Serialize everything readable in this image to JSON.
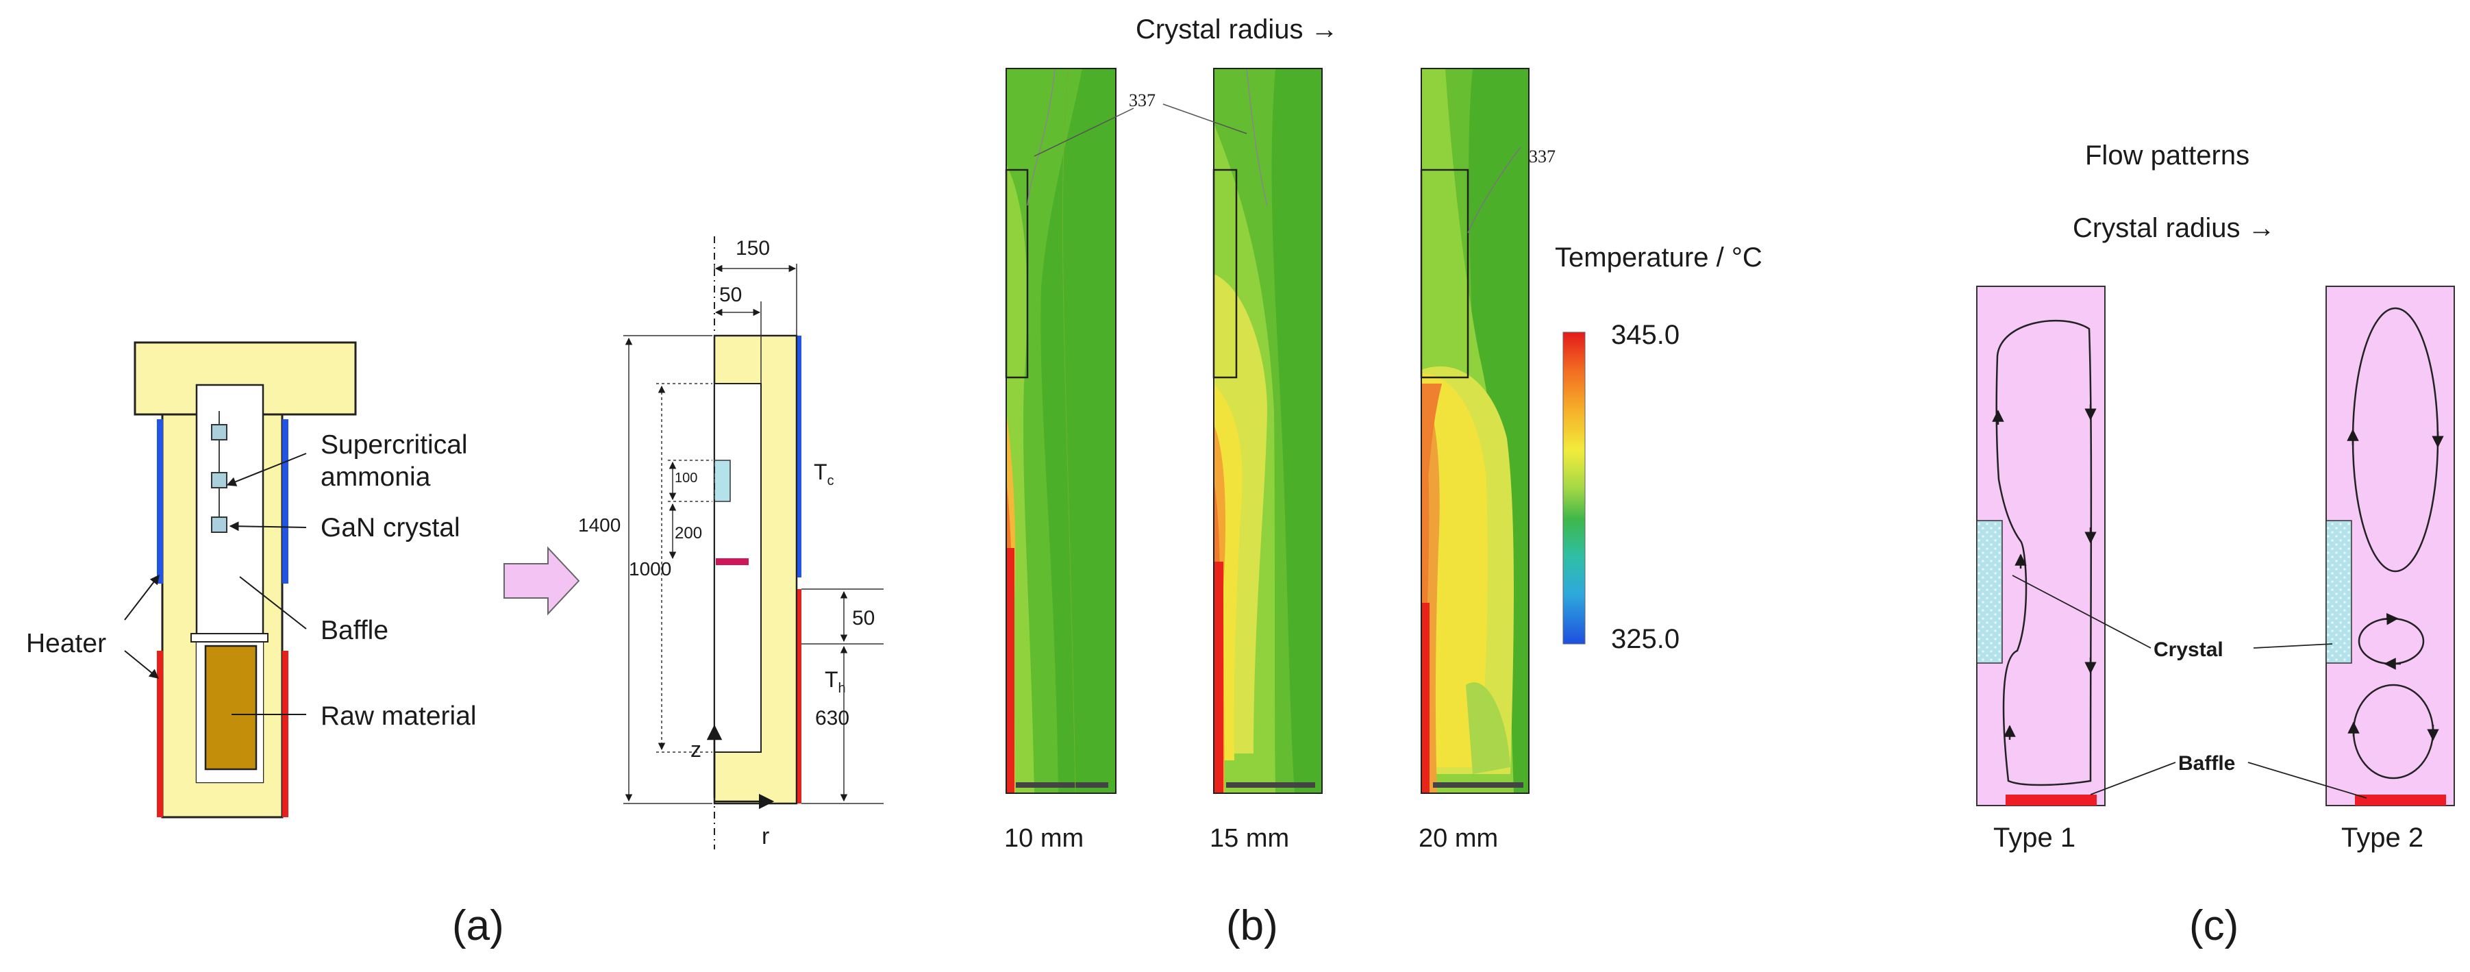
{
  "panel_a": {
    "letter": "(a)",
    "labels": {
      "heater": "Heater",
      "supercritical_line1": "Supercritical",
      "supercritical_line2": "ammonia",
      "gan_crystal": "GaN crystal",
      "baffle": "Baffle",
      "raw_material": "Raw material"
    },
    "dims": {
      "d150": "150",
      "d50_top": "50",
      "d1400": "1400",
      "d1000": "1000",
      "d100": "100",
      "d200": "200",
      "d50_side": "50",
      "d630": "630"
    },
    "axis": {
      "z": "z",
      "r": "r"
    },
    "temps": {
      "tc_main": "T",
      "tc_sub": "c",
      "th_main": "T",
      "th_sub": "h"
    }
  },
  "panel_b": {
    "letter": "(b)",
    "header": "Crystal radius →",
    "isoline_label": "337",
    "cases": [
      "10 mm",
      "15 mm",
      "20 mm"
    ],
    "colorbar": {
      "title": "Temperature / °C",
      "max_label": "345.0",
      "min_label": "325.0",
      "max": 345.0,
      "min": 325.0
    },
    "colors": {
      "hot": "#e8241b",
      "warm": "#f08a2a",
      "yellow": "#f2e640",
      "green_light": "#a6d84a",
      "green": "#78c634",
      "green_dark": "#4cae2a"
    }
  },
  "panel_c": {
    "letter": "(c)",
    "title": "Flow patterns",
    "header": "Crystal radius →",
    "crystal_label": "Crystal",
    "baffle_label": "Baffle",
    "types": [
      "Type 1",
      "Type 2"
    ],
    "colors": {
      "domain": "#f6c9f6",
      "crystal": "#b4e2ea",
      "baffle": "#ee1c24"
    }
  }
}
